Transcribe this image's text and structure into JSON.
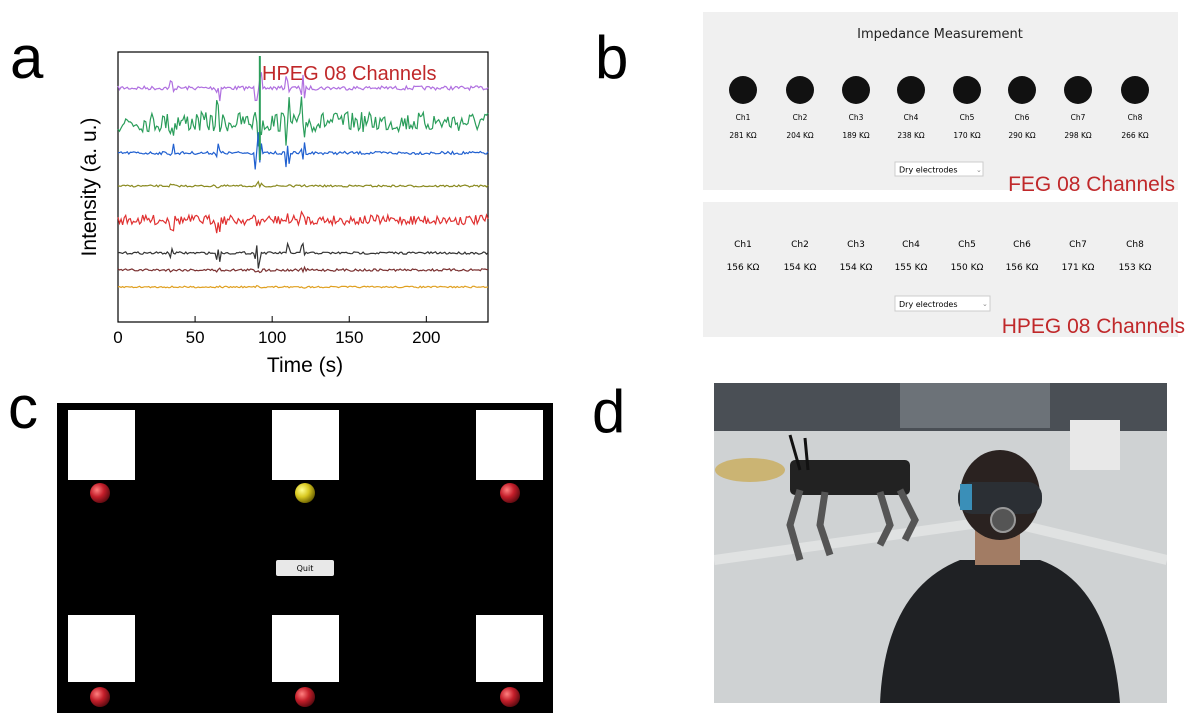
{
  "panel_labels": [
    "a",
    "b",
    "c",
    "d"
  ],
  "chart_data": {
    "type": "line",
    "annotation": "HPEG 08 Channels",
    "xlabel": "Time (s)",
    "ylabel": "Intensity (a. u.)",
    "xlim": [
      0,
      240
    ],
    "xticks": [
      0,
      50,
      100,
      150,
      200
    ],
    "trace_colors": [
      "#b070e0",
      "#2a9d5a",
      "#2060d0",
      "#8a8a20",
      "#e03030",
      "#333333",
      "#7a3030",
      "#e0a020"
    ]
  },
  "impedance": {
    "title": "Impedance Measurement",
    "feg": {
      "channels": [
        "Ch1",
        "Ch2",
        "Ch3",
        "Ch4",
        "Ch5",
        "Ch6",
        "Ch7",
        "Ch8"
      ],
      "values": [
        "281 KΩ",
        "204 KΩ",
        "189 KΩ",
        "238 KΩ",
        "170 KΩ",
        "290 KΩ",
        "298 KΩ",
        "266 KΩ"
      ],
      "dropdown": "Dry electrodes",
      "label": "FEG 08 Channels"
    },
    "hpeg": {
      "channels": [
        "Ch1",
        "Ch2",
        "Ch3",
        "Ch4",
        "Ch5",
        "Ch6",
        "Ch7",
        "Ch8"
      ],
      "values": [
        "156 KΩ",
        "154 KΩ",
        "154 KΩ",
        "155 KΩ",
        "150 KΩ",
        "156 KΩ",
        "171 KΩ",
        "153 KΩ"
      ],
      "dropdown": "Dry electrodes",
      "label": "HPEG 08 Channels"
    }
  },
  "game": {
    "button": "Quit"
  }
}
